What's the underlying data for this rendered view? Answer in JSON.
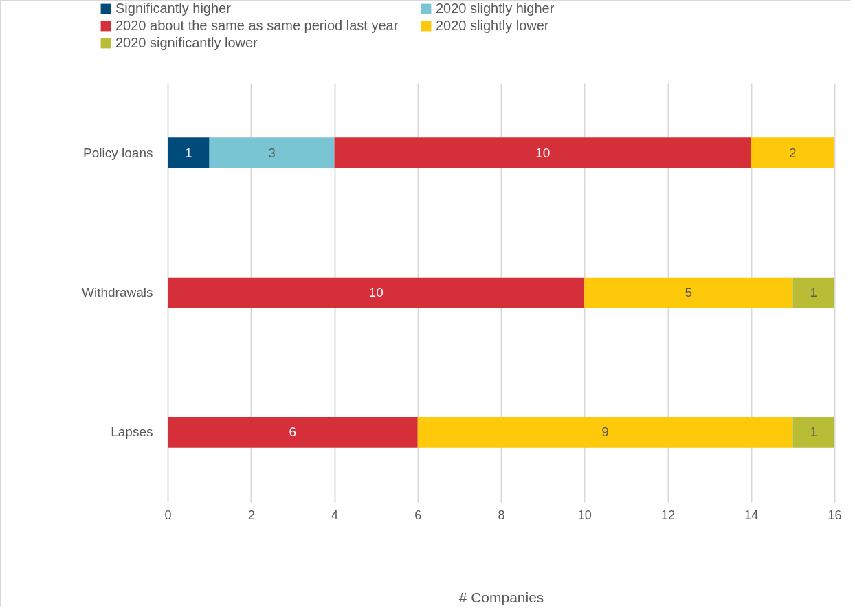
{
  "chart_data": {
    "type": "bar",
    "orientation": "horizontal",
    "stacked": true,
    "categories": [
      "Policy loans",
      "Withdrawals",
      "Lapses"
    ],
    "series": [
      {
        "name": "Significantly higher",
        "color": "#004b7a",
        "values": [
          1,
          null,
          null
        ]
      },
      {
        "name": "2020 slightly higher",
        "color": "#7ac5d4",
        "values": [
          3,
          null,
          null
        ]
      },
      {
        "name": "2020 about the same as same period last year",
        "color": "#d5303a",
        "values": [
          10,
          10,
          6
        ]
      },
      {
        "name": "2020 slightly lower",
        "color": "#fdc90a",
        "values": [
          2,
          5,
          9
        ]
      },
      {
        "name": "2020 significantly lower",
        "color": "#b8bd35",
        "values": [
          null,
          1,
          1
        ]
      }
    ],
    "xlabel": "# Companies",
    "xlim": [
      0,
      16
    ],
    "xticks": [
      0,
      2,
      4,
      6,
      8,
      10,
      12,
      14,
      16
    ],
    "grid": "x",
    "legend": "top",
    "data_labels": true
  }
}
